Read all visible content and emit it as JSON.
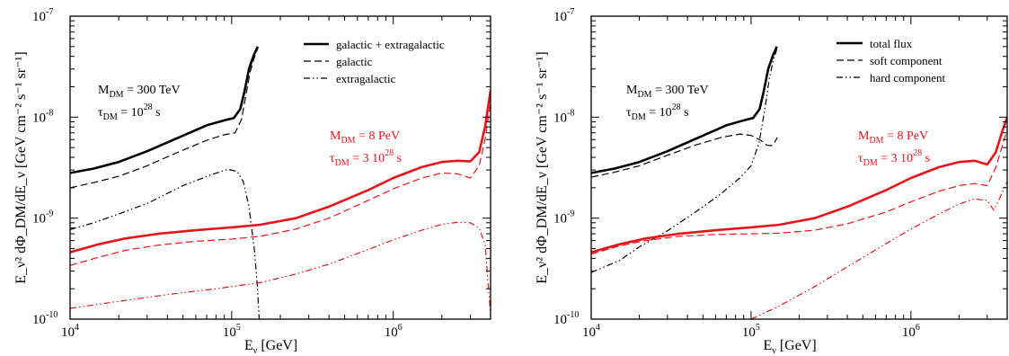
{
  "chart_data": [
    {
      "type": "line",
      "xscale": "log",
      "yscale": "log",
      "xlim": [
        10000,
        4000000
      ],
      "ylim": [
        1e-10,
        1e-07
      ],
      "xlabel": {
        "main": "E",
        "sub": "ν",
        "unit": " [GeV]"
      },
      "ylabel": "E_ν² dΦ_DM/dE_ν [GeV cm⁻² s⁻¹ sr⁻¹]",
      "xticks": [
        {
          "base": "10",
          "exp": "4"
        },
        {
          "base": "10",
          "exp": "5"
        },
        {
          "base": "10",
          "exp": "6"
        }
      ],
      "yticks": [
        {
          "base": "10",
          "exp": "-10"
        },
        {
          "base": "10",
          "exp": "-9"
        },
        {
          "base": "10",
          "exp": "-8"
        },
        {
          "base": "10",
          "exp": "-7"
        }
      ],
      "legend": {
        "position": "top-right",
        "entries": [
          {
            "label": "galactic + extragalactic",
            "style": "solid"
          },
          {
            "label": "galactic",
            "style": "dashed"
          },
          {
            "label": "extragalactic",
            "style": "dashdotdot"
          }
        ]
      },
      "annotations": [
        {
          "color": "#000000",
          "mass_label": "M",
          "mass_sub": "DM",
          "mass_value": " = 300 TeV",
          "tau_label": "τ",
          "tau_sub": "DM",
          "tau_value": " = 10",
          "tau_exp": "28",
          "tau_unit": " s"
        },
        {
          "color": "#e8141c",
          "mass_label": "M",
          "mass_sub": "DM",
          "mass_value": " = 8 PeV",
          "tau_label": "τ",
          "tau_sub": "DM",
          "tau_value": " = 3 10",
          "tau_exp": "28",
          "tau_unit": " s"
        }
      ],
      "series": [
        {
          "group": "M_DM = 300 TeV",
          "style": "solid",
          "color": "#000000",
          "width": 2.6,
          "points": [
            [
              10000,
              2.8e-09
            ],
            [
              14000,
              3.1e-09
            ],
            [
              20000,
              3.6e-09
            ],
            [
              30000,
              4.6e-09
            ],
            [
              45000,
              6.1e-09
            ],
            [
              70000,
              8.3e-09
            ],
            [
              90000,
              9.3e-09
            ],
            [
              103000,
              9.8e-09
            ],
            [
              113000,
              1.2e-08
            ],
            [
              120000,
              1.8e-08
            ],
            [
              128000,
              3e-08
            ],
            [
              137000,
              4.1e-08
            ],
            [
              145000,
              5e-08
            ]
          ]
        },
        {
          "group": "M_DM = 300 TeV",
          "style": "dashed",
          "color": "#000000",
          "width": 1.2,
          "points": [
            [
              10000,
              2e-09
            ],
            [
              14000,
              2.25e-09
            ],
            [
              20000,
              2.6e-09
            ],
            [
              30000,
              3.3e-09
            ],
            [
              45000,
              4.4e-09
            ],
            [
              70000,
              5.9e-09
            ],
            [
              90000,
              6.7e-09
            ],
            [
              105000,
              7e-09
            ],
            [
              115000,
              9.5e-09
            ],
            [
              122000,
              1.6e-08
            ],
            [
              130000,
              2.8e-08
            ],
            [
              138000,
              3.9e-08
            ],
            [
              145000,
              4.8e-08
            ]
          ]
        },
        {
          "group": "M_DM = 300 TeV",
          "style": "dashdotdot",
          "color": "#000000",
          "width": 1.2,
          "points": [
            [
              10000,
              7.7e-10
            ],
            [
              14000,
              9e-10
            ],
            [
              20000,
              1.1e-09
            ],
            [
              30000,
              1.4e-09
            ],
            [
              50000,
              2.1e-09
            ],
            [
              75000,
              2.7e-09
            ],
            [
              95000,
              3.05e-09
            ],
            [
              108000,
              2.9e-09
            ],
            [
              118000,
              2.3e-09
            ],
            [
              128000,
              1.3e-09
            ],
            [
              138000,
              5e-10
            ],
            [
              144000,
              2.2e-10
            ],
            [
              148000,
              1e-10
            ]
          ]
        },
        {
          "group": "M_DM = 8 PeV",
          "style": "solid",
          "color": "#e8141c",
          "width": 2.6,
          "points": [
            [
              10000,
              4.6e-10
            ],
            [
              15000,
              5.5e-10
            ],
            [
              22000,
              6.3e-10
            ],
            [
              35000,
              7e-10
            ],
            [
              60000,
              7.6e-10
            ],
            [
              100000,
              8.1e-10
            ],
            [
              150000,
              8.6e-10
            ],
            [
              250000,
              1e-09
            ],
            [
              400000,
              1.3e-09
            ],
            [
              700000,
              1.9e-09
            ],
            [
              1000000,
              2.5e-09
            ],
            [
              1500000,
              3.2e-09
            ],
            [
              2000000,
              3.6e-09
            ],
            [
              2500000,
              3.7e-09
            ],
            [
              3000000,
              3.65e-09
            ],
            [
              3400000,
              4.5e-09
            ],
            [
              3700000,
              8e-09
            ],
            [
              4000000,
              1.85e-08
            ]
          ]
        },
        {
          "group": "M_DM = 8 PeV",
          "style": "dashed",
          "color": "#e8141c",
          "width": 1.2,
          "points": [
            [
              10000,
              3.4e-10
            ],
            [
              15000,
              4.1e-10
            ],
            [
              22000,
              4.8e-10
            ],
            [
              35000,
              5.4e-10
            ],
            [
              60000,
              5.9e-10
            ],
            [
              100000,
              6.2e-10
            ],
            [
              150000,
              6.6e-10
            ],
            [
              250000,
              7.8e-10
            ],
            [
              400000,
              1e-09
            ],
            [
              700000,
              1.5e-09
            ],
            [
              1000000,
              1.95e-09
            ],
            [
              1500000,
              2.5e-09
            ],
            [
              2000000,
              2.8e-09
            ],
            [
              2500000,
              2.75e-09
            ],
            [
              3000000,
              2.5e-09
            ],
            [
              3400000,
              3.3e-09
            ],
            [
              3700000,
              6e-09
            ],
            [
              4000000,
              1.4e-08
            ]
          ]
        },
        {
          "group": "M_DM = 8 PeV",
          "style": "dashdotdot",
          "color": "#e8141c",
          "width": 1.2,
          "points": [
            [
              10000,
              1.28e-10
            ],
            [
              20000,
              1.5e-10
            ],
            [
              40000,
              1.75e-10
            ],
            [
              80000,
              2e-10
            ],
            [
              150000,
              2.3e-10
            ],
            [
              250000,
              2.8e-10
            ],
            [
              400000,
              3.5e-10
            ],
            [
              700000,
              4.9e-10
            ],
            [
              1000000,
              6.1e-10
            ],
            [
              1500000,
              7.6e-10
            ],
            [
              2000000,
              8.7e-10
            ],
            [
              2500000,
              9.1e-10
            ],
            [
              3000000,
              9e-10
            ],
            [
              3400000,
              8e-10
            ],
            [
              3700000,
              5.5e-10
            ],
            [
              4000000,
              1.1e-10
            ]
          ]
        }
      ]
    },
    {
      "type": "line",
      "xscale": "log",
      "yscale": "log",
      "xlim": [
        10000,
        4000000
      ],
      "ylim": [
        1e-10,
        1e-07
      ],
      "xlabel": {
        "main": "E",
        "sub": "ν",
        "unit": " [GeV]"
      },
      "ylabel": "E_ν² dΦ_DM/dE_ν [GeV cm⁻² s⁻¹ sr⁻¹]",
      "xticks": [
        {
          "base": "10",
          "exp": "4"
        },
        {
          "base": "10",
          "exp": "5"
        },
        {
          "base": "10",
          "exp": "6"
        }
      ],
      "yticks": [
        {
          "base": "10",
          "exp": "-10"
        },
        {
          "base": "10",
          "exp": "-9"
        },
        {
          "base": "10",
          "exp": "-8"
        },
        {
          "base": "10",
          "exp": "-7"
        }
      ],
      "legend": {
        "position": "top-right",
        "entries": [
          {
            "label": "total flux",
            "style": "solid"
          },
          {
            "label": "soft component",
            "style": "dashed"
          },
          {
            "label": "hard component",
            "style": "dashdotdot"
          }
        ]
      },
      "annotations": [
        {
          "color": "#000000",
          "mass_label": "M",
          "mass_sub": "DM",
          "mass_value": " = 300 TeV",
          "tau_label": "τ",
          "tau_sub": "DM",
          "tau_value": " = 10",
          "tau_exp": "28",
          "tau_unit": " s"
        },
        {
          "color": "#e8141c",
          "mass_label": "M",
          "mass_sub": "DM",
          "mass_value": " = 8 PeV",
          "tau_label": "τ",
          "tau_sub": "DM",
          "tau_value": " = 3 10",
          "tau_exp": "28",
          "tau_unit": " s"
        }
      ],
      "series": [
        {
          "group": "M_DM = 300 TeV",
          "style": "solid",
          "color": "#000000",
          "width": 2.6,
          "points": [
            [
              10000,
              2.8e-09
            ],
            [
              14000,
              3.1e-09
            ],
            [
              20000,
              3.6e-09
            ],
            [
              30000,
              4.6e-09
            ],
            [
              45000,
              6.1e-09
            ],
            [
              70000,
              8.3e-09
            ],
            [
              90000,
              9.3e-09
            ],
            [
              103000,
              9.8e-09
            ],
            [
              113000,
              1.2e-08
            ],
            [
              120000,
              1.8e-08
            ],
            [
              128000,
              3e-08
            ],
            [
              137000,
              4.1e-08
            ],
            [
              145000,
              5e-08
            ]
          ]
        },
        {
          "group": "M_DM = 300 TeV",
          "style": "dashed",
          "color": "#000000",
          "width": 1.2,
          "points": [
            [
              10000,
              2.55e-09
            ],
            [
              14000,
              2.85e-09
            ],
            [
              20000,
              3.3e-09
            ],
            [
              30000,
              4.2e-09
            ],
            [
              45000,
              5.3e-09
            ],
            [
              65000,
              6.3e-09
            ],
            [
              85000,
              6.8e-09
            ],
            [
              100000,
              6.6e-09
            ],
            [
              115000,
              5.9e-09
            ],
            [
              125000,
              5.3e-09
            ],
            [
              133000,
              5.2e-09
            ],
            [
              140000,
              5.6e-09
            ],
            [
              146000,
              6.3e-09
            ]
          ]
        },
        {
          "group": "M_DM = 300 TeV",
          "style": "dashdotdot",
          "color": "#000000",
          "width": 1.2,
          "points": [
            [
              10000,
              2.9e-10
            ],
            [
              15000,
              3.8e-10
            ],
            [
              20000,
              5.2e-10
            ],
            [
              30000,
              7.5e-10
            ],
            [
              45000,
              1.15e-09
            ],
            [
              65000,
              1.75e-09
            ],
            [
              85000,
              2.5e-09
            ],
            [
              100000,
              3.3e-09
            ],
            [
              112000,
              5.5e-09
            ],
            [
              122000,
              1.2e-08
            ],
            [
              130000,
              2.4e-08
            ],
            [
              138000,
              3.7e-08
            ],
            [
              145000,
              4.7e-08
            ]
          ]
        },
        {
          "group": "M_DM = 8 PeV",
          "style": "solid",
          "color": "#e8141c",
          "width": 2.6,
          "points": [
            [
              10000,
              4.6e-10
            ],
            [
              15000,
              5.5e-10
            ],
            [
              22000,
              6.3e-10
            ],
            [
              35000,
              7e-10
            ],
            [
              60000,
              7.6e-10
            ],
            [
              100000,
              8.1e-10
            ],
            [
              150000,
              8.6e-10
            ],
            [
              250000,
              1e-09
            ],
            [
              400000,
              1.3e-09
            ],
            [
              700000,
              1.9e-09
            ],
            [
              1000000,
              2.5e-09
            ],
            [
              1500000,
              3.2e-09
            ],
            [
              2000000,
              3.6e-09
            ],
            [
              2500000,
              3.7e-09
            ],
            [
              3000000,
              3.4e-09
            ],
            [
              3400000,
              4.5e-09
            ],
            [
              3700000,
              7e-09
            ],
            [
              4000000,
              1e-08
            ]
          ]
        },
        {
          "group": "M_DM = 8 PeV",
          "style": "dashed",
          "color": "#e8141c",
          "width": 1.2,
          "points": [
            [
              10000,
              4.4e-10
            ],
            [
              15000,
              5.3e-10
            ],
            [
              22000,
              6e-10
            ],
            [
              35000,
              6.6e-10
            ],
            [
              60000,
              6.9e-10
            ],
            [
              100000,
              7e-10
            ],
            [
              150000,
              7.1e-10
            ],
            [
              250000,
              7.6e-10
            ],
            [
              400000,
              8.8e-10
            ],
            [
              700000,
              1.15e-09
            ],
            [
              1000000,
              1.45e-09
            ],
            [
              1500000,
              1.85e-09
            ],
            [
              2000000,
              2.1e-09
            ],
            [
              2500000,
              2.2e-09
            ],
            [
              3000000,
              2.1e-09
            ],
            [
              3400000,
              3.2e-09
            ],
            [
              3700000,
              5e-09
            ],
            [
              4000000,
              7.5e-09
            ]
          ]
        },
        {
          "group": "M_DM = 8 PeV",
          "style": "dashdotdot",
          "color": "#e8141c",
          "width": 1.2,
          "points": [
            [
              100000,
              1e-10
            ],
            [
              150000,
              1.35e-10
            ],
            [
              250000,
              2.1e-10
            ],
            [
              400000,
              3.3e-10
            ],
            [
              700000,
              5.6e-10
            ],
            [
              1000000,
              7.8e-10
            ],
            [
              1500000,
              1.1e-09
            ],
            [
              2000000,
              1.38e-09
            ],
            [
              2500000,
              1.55e-09
            ],
            [
              3000000,
              1.5e-09
            ],
            [
              3300000,
              1.2e-09
            ],
            [
              3600000,
              1.6e-09
            ],
            [
              4000000,
              2.3e-09
            ]
          ]
        }
      ]
    }
  ]
}
